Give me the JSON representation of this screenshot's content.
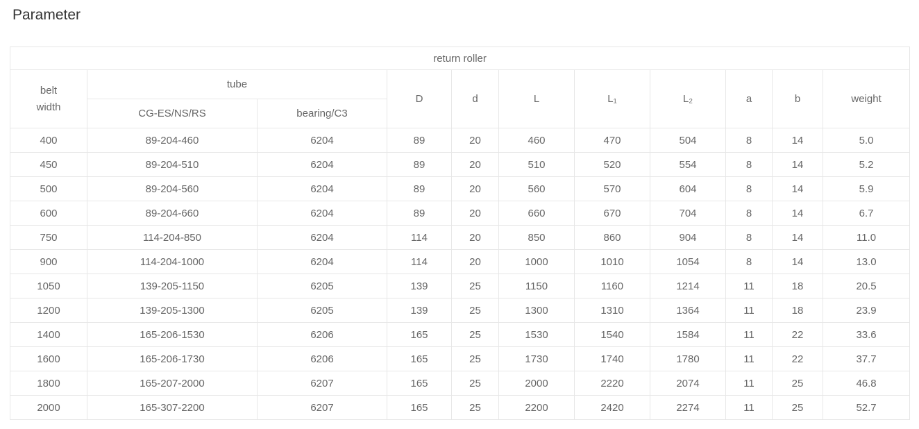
{
  "page": {
    "title": "Parameter"
  },
  "table": {
    "group_header": "return roller",
    "header": {
      "belt_width": "belt\nwidth",
      "tube": "tube",
      "tube_subcols": [
        "CG-ES/NS/RS",
        "bearing/C3"
      ],
      "columns": [
        "D",
        "d",
        "L",
        "L₁",
        "L₂",
        "a",
        "b",
        "weight"
      ]
    },
    "rows": [
      [
        "400",
        "89-204-460",
        "6204",
        "89",
        "20",
        "460",
        "470",
        "504",
        "8",
        "14",
        "5.0"
      ],
      [
        "450",
        "89-204-510",
        "6204",
        "89",
        "20",
        "510",
        "520",
        "554",
        "8",
        "14",
        "5.2"
      ],
      [
        "500",
        "89-204-560",
        "6204",
        "89",
        "20",
        "560",
        "570",
        "604",
        "8",
        "14",
        "5.9"
      ],
      [
        "600",
        "89-204-660",
        "6204",
        "89",
        "20",
        "660",
        "670",
        "704",
        "8",
        "14",
        "6.7"
      ],
      [
        "750",
        "114-204-850",
        "6204",
        "114",
        "20",
        "850",
        "860",
        "904",
        "8",
        "14",
        "11.0"
      ],
      [
        "900",
        "114-204-1000",
        "6204",
        "114",
        "20",
        "1000",
        "1010",
        "1054",
        "8",
        "14",
        "13.0"
      ],
      [
        "1050",
        "139-205-1150",
        "6205",
        "139",
        "25",
        "1150",
        "1160",
        "1214",
        "11",
        "18",
        "20.5"
      ],
      [
        "1200",
        "139-205-1300",
        "6205",
        "139",
        "25",
        "1300",
        "1310",
        "1364",
        "11",
        "18",
        "23.9"
      ],
      [
        "1400",
        "165-206-1530",
        "6206",
        "165",
        "25",
        "1530",
        "1540",
        "1584",
        "11",
        "22",
        "33.6"
      ],
      [
        "1600",
        "165-206-1730",
        "6206",
        "165",
        "25",
        "1730",
        "1740",
        "1780",
        "11",
        "22",
        "37.7"
      ],
      [
        "1800",
        "165-207-2000",
        "6207",
        "165",
        "25",
        "2000",
        "2220",
        "2074",
        "11",
        "25",
        "46.8"
      ],
      [
        "2000",
        "165-307-2200",
        "6207",
        "165",
        "25",
        "2200",
        "2420",
        "2274",
        "11",
        "25",
        "52.7"
      ]
    ]
  },
  "colors": {
    "title_text": "#333333",
    "table_text": "#666666",
    "border": "#e7e7e7",
    "background": "#ffffff"
  }
}
